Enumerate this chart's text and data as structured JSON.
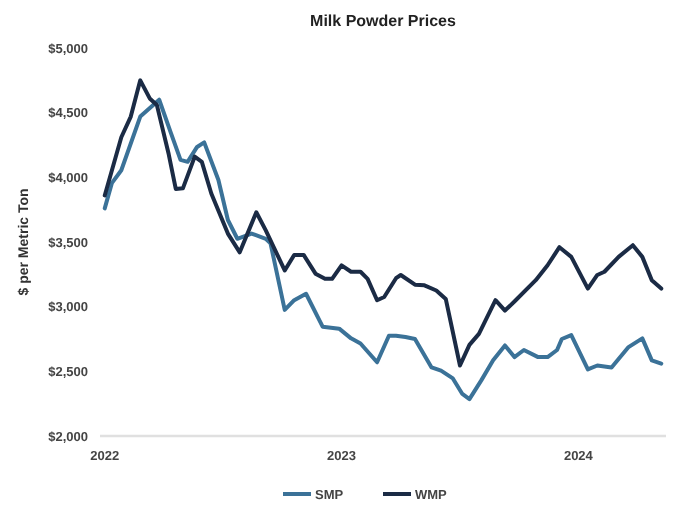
{
  "chart_data": {
    "type": "line",
    "title": "Milk Powder Prices",
    "ylabel": "$ per Metric Ton",
    "xlim": [
      2021.98,
      2024.37
    ],
    "xticks": [
      2022,
      2023,
      2024
    ],
    "ylim": [
      2000,
      5000
    ],
    "yticks": [
      {
        "value": 2000,
        "label": "$2,000"
      },
      {
        "value": 2500,
        "label": "$2,500"
      },
      {
        "value": 3000,
        "label": "$3,000"
      },
      {
        "value": 3500,
        "label": "$3,500"
      },
      {
        "value": 4000,
        "label": "$4,000"
      },
      {
        "value": 4500,
        "label": "$4,500"
      },
      {
        "value": 5000,
        "label": "$5,000"
      }
    ],
    "grid": false,
    "legend": "bottom",
    "marker": "none",
    "line_style": "solid",
    "series": [
      {
        "name": "SMP",
        "color": "#3b7298",
        "x": [
          2022.0,
          2022.03,
          2022.07,
          2022.15,
          2022.23,
          2022.28,
          2022.32,
          2022.35,
          2022.39,
          2022.42,
          2022.48,
          2022.52,
          2022.56,
          2022.62,
          2022.68,
          2022.7,
          2022.76,
          2022.8,
          2022.85,
          2022.92,
          2022.99,
          2023.04,
          2023.08,
          2023.15,
          2023.2,
          2023.23,
          2023.27,
          2023.31,
          2023.38,
          2023.42,
          2023.47,
          2023.51,
          2023.54,
          2023.59,
          2023.64,
          2023.69,
          2023.73,
          2023.77,
          2023.83,
          2023.87,
          2023.91,
          2023.93,
          2023.97,
          2024.04,
          2024.08,
          2024.14,
          2024.21,
          2024.27,
          2024.31,
          2024.35
        ],
        "values": [
          3760,
          3955,
          4055,
          4470,
          4600,
          4340,
          4135,
          4120,
          4235,
          4270,
          3980,
          3670,
          3525,
          3565,
          3525,
          3490,
          2975,
          3050,
          3100,
          2845,
          2830,
          2755,
          2715,
          2570,
          2775,
          2775,
          2765,
          2750,
          2530,
          2505,
          2445,
          2325,
          2285,
          2430,
          2585,
          2700,
          2610,
          2665,
          2610,
          2610,
          2665,
          2750,
          2780,
          2515,
          2545,
          2530,
          2685,
          2755,
          2585,
          2560
        ]
      },
      {
        "name": "WMP",
        "color": "#1b2b45",
        "x": [
          2022.0,
          2022.07,
          2022.11,
          2022.15,
          2022.19,
          2022.22,
          2022.27,
          2022.3,
          2022.33,
          2022.38,
          2022.41,
          2022.45,
          2022.52,
          2022.57,
          2022.64,
          2022.68,
          2022.76,
          2022.8,
          2022.84,
          2022.89,
          2022.93,
          2022.96,
          2023.0,
          2023.04,
          2023.08,
          2023.11,
          2023.15,
          2023.18,
          2023.23,
          2023.25,
          2023.31,
          2023.35,
          2023.4,
          2023.44,
          2023.5,
          2023.54,
          2023.58,
          2023.65,
          2023.69,
          2023.73,
          2023.82,
          2023.87,
          2023.92,
          2023.97,
          2024.04,
          2024.08,
          2024.11,
          2024.17,
          2024.23,
          2024.27,
          2024.31,
          2024.35
        ],
        "values": [
          3860,
          4310,
          4470,
          4750,
          4610,
          4560,
          4180,
          3910,
          3915,
          4160,
          4120,
          3875,
          3565,
          3420,
          3730,
          3590,
          3280,
          3400,
          3400,
          3255,
          3215,
          3215,
          3320,
          3270,
          3270,
          3215,
          3050,
          3075,
          3220,
          3245,
          3170,
          3165,
          3125,
          3060,
          2545,
          2705,
          2790,
          3050,
          2970,
          3040,
          3205,
          3320,
          3460,
          3385,
          3140,
          3245,
          3270,
          3385,
          3475,
          3385,
          3205,
          3140
        ]
      }
    ]
  }
}
